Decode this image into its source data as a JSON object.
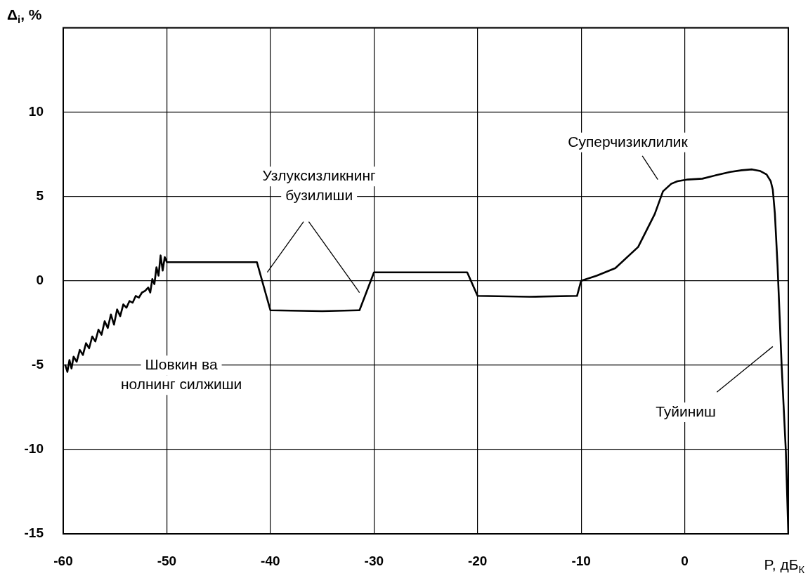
{
  "chart_data": {
    "type": "line",
    "xlabel": "P, дБ$_{К}$",
    "ylabel": "Δ$_{i}$, %",
    "x": [
      -59.8,
      -59.6,
      -59.4,
      -59.2,
      -59.0,
      -58.7,
      -58.4,
      -58.1,
      -57.8,
      -57.5,
      -57.2,
      -56.9,
      -56.6,
      -56.3,
      -56.0,
      -55.7,
      -55.4,
      -55.1,
      -54.8,
      -54.5,
      -54.2,
      -53.9,
      -53.6,
      -53.3,
      -53.0,
      -52.7,
      -52.4,
      -52.1,
      -51.8,
      -51.6,
      -51.4,
      -51.2,
      -51.0,
      -50.8,
      -50.6,
      -50.4,
      -50.2,
      -50.0,
      -45.0,
      -41.3,
      -40.0,
      -35.0,
      -31.4,
      -30.0,
      -25.0,
      -21.0,
      -20.0,
      -15.0,
      -10.4,
      -10.0,
      -8.5,
      -6.7,
      -4.5,
      -2.9,
      -2.1,
      -1.3,
      -0.7,
      0.3,
      1.7,
      3.0,
      4.4,
      5.5,
      6.5,
      7.3,
      7.9,
      8.3,
      8.5,
      8.7,
      8.96,
      9.36,
      9.76,
      10.0
    ],
    "values": [
      -5.0,
      -5.4,
      -4.7,
      -5.2,
      -4.5,
      -4.8,
      -4.1,
      -4.4,
      -3.7,
      -4.0,
      -3.3,
      -3.6,
      -2.9,
      -3.2,
      -2.4,
      -2.8,
      -2.0,
      -2.6,
      -1.7,
      -2.1,
      -1.4,
      -1.6,
      -1.2,
      -1.3,
      -0.9,
      -1.0,
      -0.7,
      -0.6,
      -0.4,
      -0.7,
      0.1,
      -0.2,
      0.8,
      0.3,
      1.5,
      0.6,
      1.4,
      1.1,
      1.1,
      1.1,
      -1.75,
      -1.8,
      -1.75,
      0.5,
      0.5,
      0.5,
      -0.9,
      -0.95,
      -0.9,
      0.0,
      0.3,
      0.75,
      2.0,
      3.95,
      5.3,
      5.75,
      5.9,
      6.0,
      6.05,
      6.25,
      6.45,
      6.55,
      6.6,
      6.5,
      6.3,
      5.9,
      5.4,
      4.0,
      0.9,
      -5.1,
      -10.1,
      -15.0
    ],
    "color": "#000000",
    "xlim": [
      -60,
      10
    ],
    "xticks": [
      -60,
      -50,
      -40,
      -30,
      -20,
      -10,
      0,
      {
        "value": 10,
        "label": null
      }
    ],
    "ylim": [
      -15,
      15
    ],
    "yticks": [
      -15,
      -10,
      -5,
      0,
      5,
      10,
      {
        "value": 15,
        "label": null
      }
    ],
    "grid": true,
    "legend": false,
    "marker": "none",
    "line_style": "solid",
    "annotations": [
      "Узлуксизликнинг\nбузилиши",
      "Шовкин ва\nнолнинг силжиши",
      "Суперчизиклилик",
      "Туйиниш"
    ]
  }
}
